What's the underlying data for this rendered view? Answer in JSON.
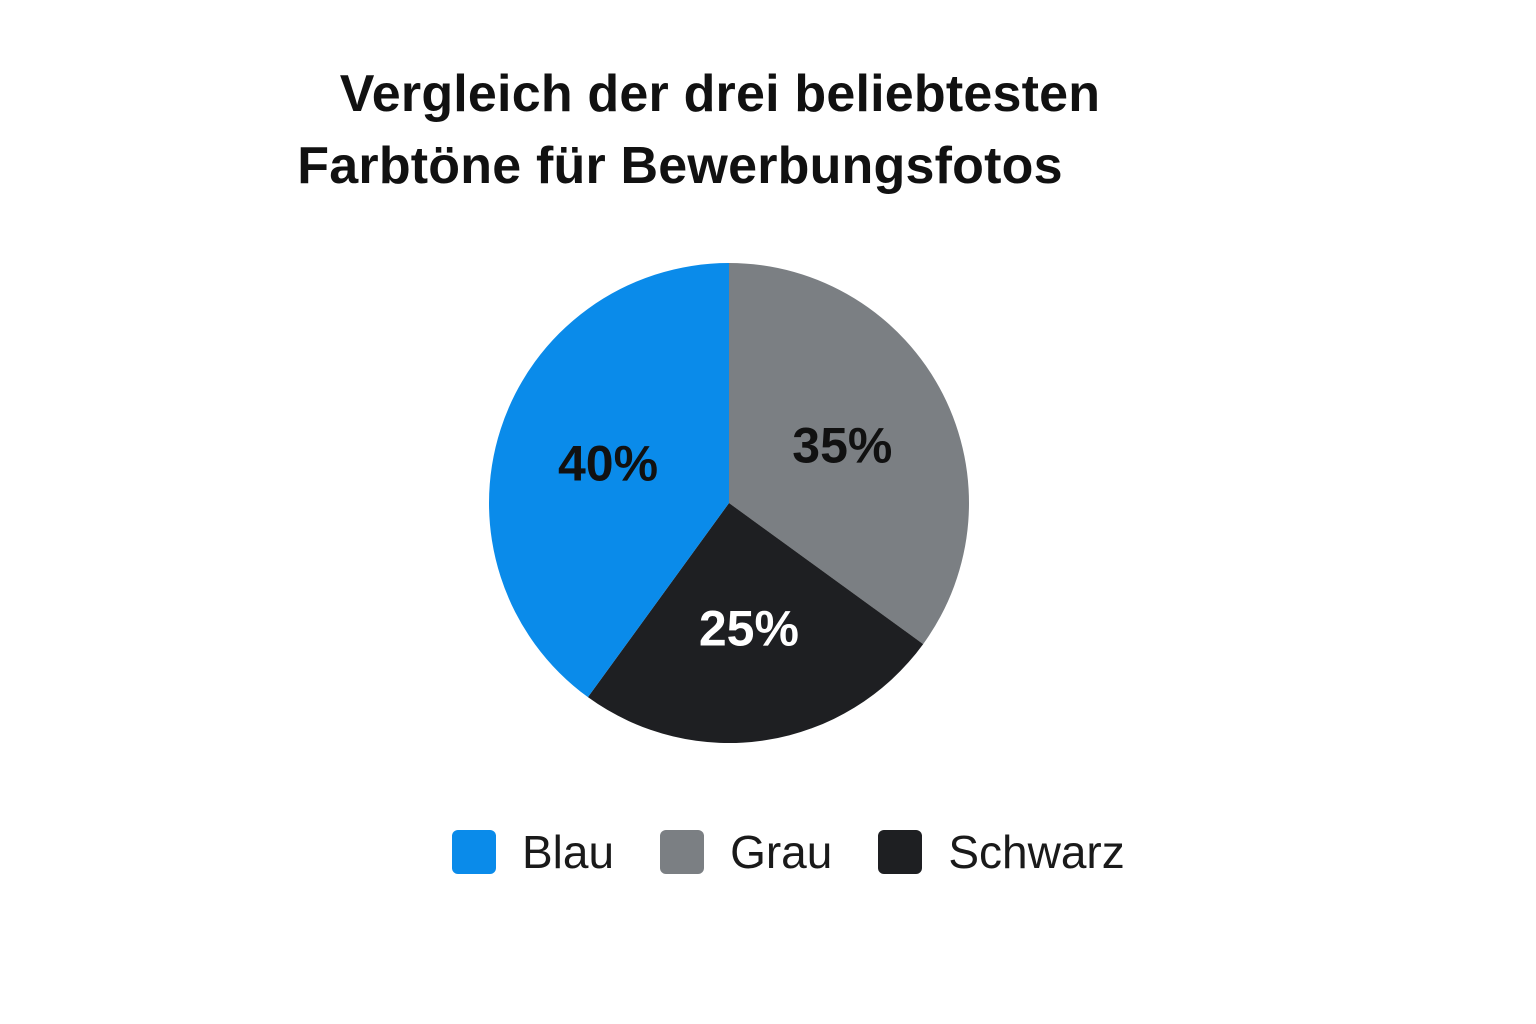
{
  "chart_data": {
    "type": "pie",
    "title_lines": [
      "Vergleich der drei beliebtesten",
      "Farbtöne für Bewerbungsfotos"
    ],
    "categories": [
      "Blau",
      "Grau",
      "Schwarz"
    ],
    "values": [
      40,
      35,
      25
    ],
    "value_labels": [
      "40%",
      "35%",
      "25%"
    ],
    "colors": [
      "#0a8bea",
      "#7b7f83",
      "#1e1f22"
    ],
    "label_colors": [
      "#111111",
      "#111111",
      "#ffffff"
    ],
    "legend_position": "bottom"
  }
}
